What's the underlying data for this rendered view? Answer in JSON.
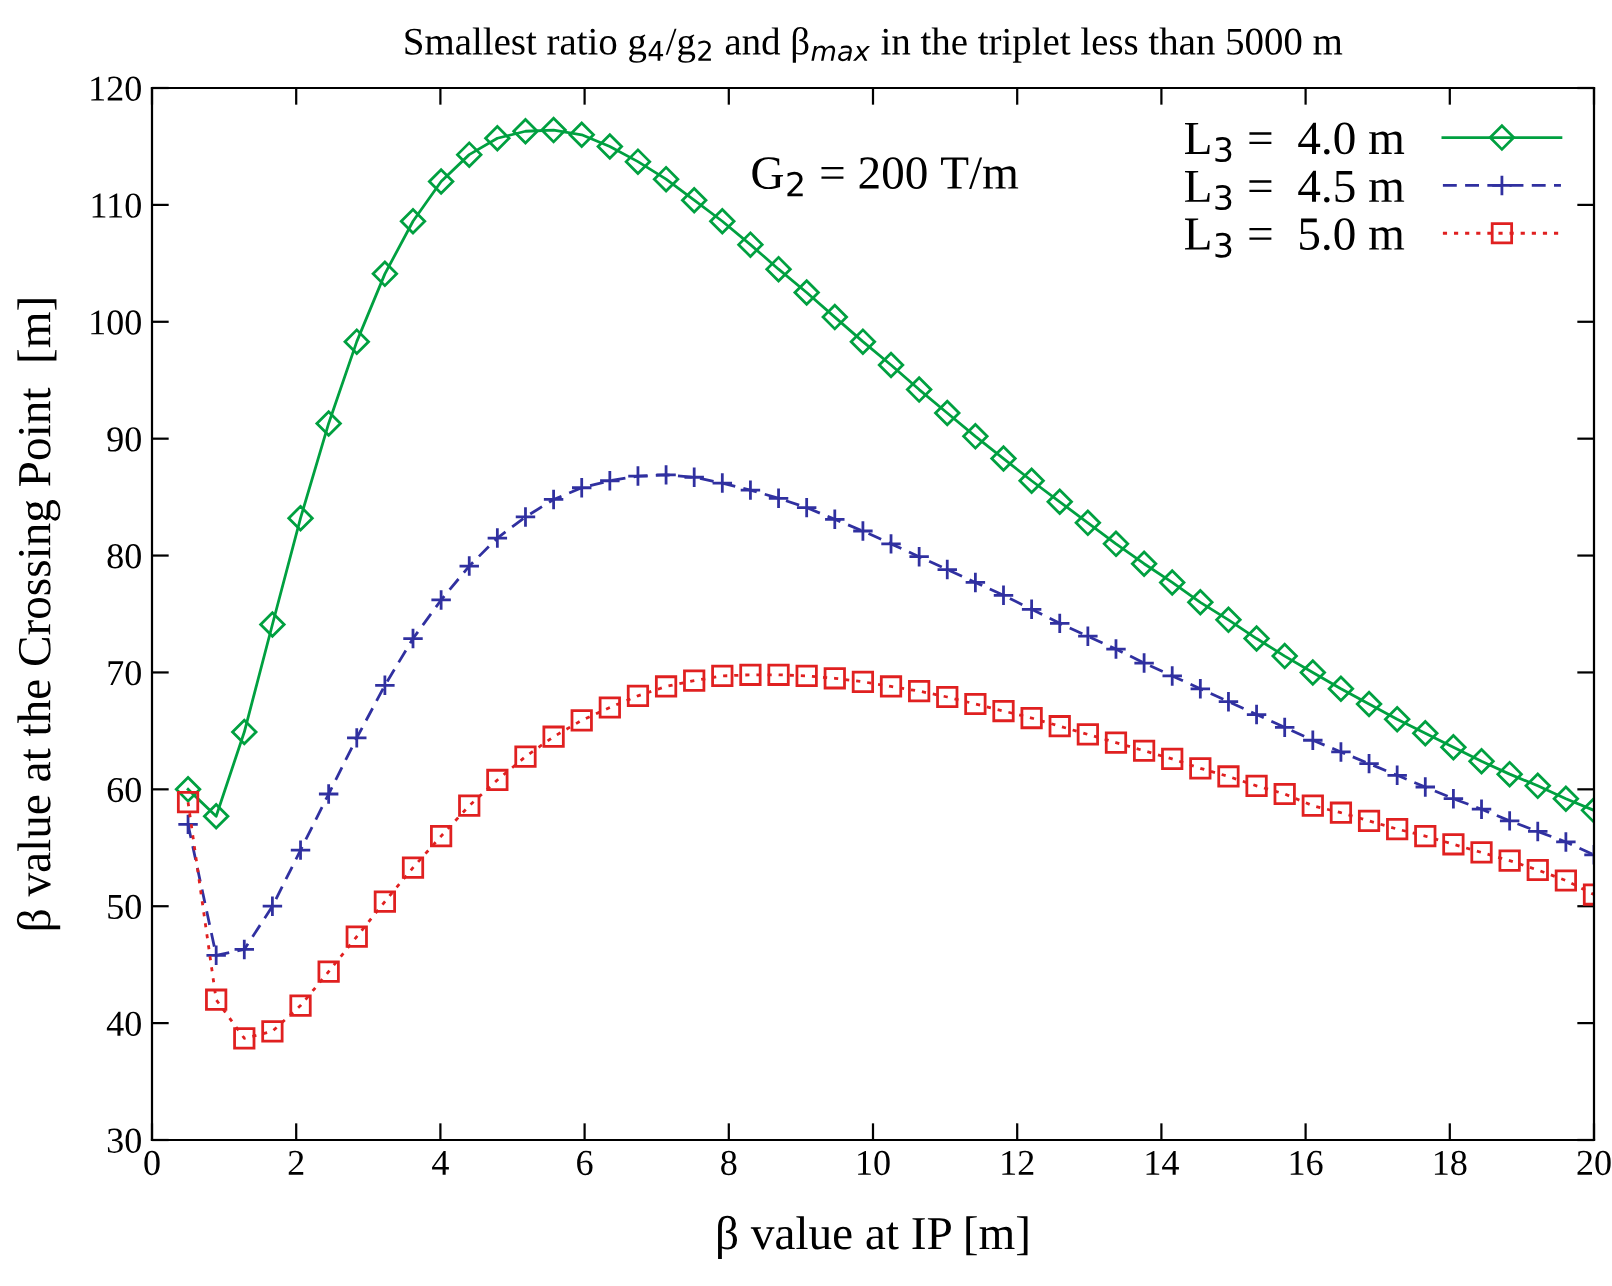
{
  "chart_data": {
    "type": "line",
    "title": "Smallest ratio g$_{4}$/g$_{2}$ and β$_{max}$ in the triplet less than 5000 m",
    "xlabel": "β value at IP [m]",
    "ylabel": "β value at the Crossing Point  [m]",
    "annotations": [
      "G$_{2}$ = 200 T/m"
    ],
    "x": [
      0.5,
      0.89,
      1.28,
      1.67,
      2.06,
      2.45,
      2.84,
      3.23,
      3.62,
      4.01,
      4.4,
      4.79,
      5.18,
      5.57,
      5.96,
      6.35,
      6.74,
      7.13,
      7.52,
      7.91,
      8.3,
      8.69,
      9.08,
      9.47,
      9.86,
      10.25,
      10.64,
      11.03,
      11.42,
      11.81,
      12.2,
      12.59,
      12.98,
      13.37,
      13.76,
      14.15,
      14.54,
      14.93,
      15.32,
      15.71,
      16.1,
      16.49,
      16.88,
      17.27,
      17.66,
      18.05,
      18.44,
      18.83,
      19.22,
      19.61,
      20.0
    ],
    "series": [
      {
        "name": "L$_{3}$ =  4.0 m",
        "color": "#00a040",
        "marker": "diamond",
        "line_style": "solid",
        "values": [
          60.0,
          57.7,
          64.9,
          74.1,
          83.2,
          91.3,
          98.3,
          104.1,
          108.6,
          112.0,
          114.3,
          115.7,
          116.3,
          116.4,
          116.0,
          115.0,
          113.7,
          112.2,
          110.4,
          108.6,
          106.6,
          104.5,
          102.5,
          100.4,
          98.3,
          96.3,
          94.2,
          92.2,
          90.2,
          88.3,
          86.4,
          84.6,
          82.8,
          81.0,
          79.3,
          77.7,
          76.0,
          74.5,
          72.9,
          71.4,
          70.0,
          68.6,
          67.3,
          66.0,
          64.8,
          63.6,
          62.4,
          61.3,
          60.3,
          59.2,
          58.2
        ]
      },
      {
        "name": "L$_{3}$ =  4.5 m",
        "color": "#3030a0",
        "marker": "cross",
        "line_style": "dashed",
        "values": [
          57.0,
          45.8,
          46.3,
          50.0,
          54.8,
          59.6,
          64.4,
          68.9,
          72.9,
          76.2,
          79.1,
          81.5,
          83.3,
          84.8,
          85.8,
          86.4,
          86.8,
          86.9,
          86.7,
          86.2,
          85.6,
          84.9,
          84.1,
          83.1,
          82.1,
          81.0,
          79.9,
          78.8,
          77.7,
          76.6,
          75.4,
          74.2,
          73.1,
          72.0,
          70.8,
          69.7,
          68.6,
          67.5,
          66.4,
          65.3,
          64.2,
          63.2,
          62.2,
          61.2,
          60.2,
          59.2,
          58.3,
          57.3,
          56.4,
          55.5,
          54.4
        ]
      },
      {
        "name": "L$_{3}$ =  5.0 m",
        "color": "#e02020",
        "marker": "square",
        "line_style": "dotted",
        "values": [
          58.9,
          42.0,
          38.7,
          39.3,
          41.5,
          44.4,
          47.4,
          50.4,
          53.3,
          56.0,
          58.6,
          60.8,
          62.8,
          64.5,
          65.9,
          67.0,
          68.0,
          68.8,
          69.3,
          69.7,
          69.8,
          69.8,
          69.7,
          69.5,
          69.2,
          68.8,
          68.4,
          67.9,
          67.3,
          66.7,
          66.1,
          65.4,
          64.7,
          64.0,
          63.3,
          62.6,
          61.8,
          61.1,
          60.3,
          59.6,
          58.6,
          58.0,
          57.3,
          56.6,
          56.0,
          55.3,
          54.6,
          53.9,
          53.1,
          52.2,
          51.0
        ]
      }
    ],
    "xlim": [
      0,
      20
    ],
    "xticks": [
      0,
      2,
      4,
      6,
      8,
      10,
      12,
      14,
      16,
      18,
      20
    ],
    "ylim": [
      30,
      120
    ],
    "yticks": [
      30,
      40,
      50,
      60,
      70,
      80,
      90,
      100,
      110,
      120
    ],
    "grid": false,
    "legend": "top right"
  }
}
